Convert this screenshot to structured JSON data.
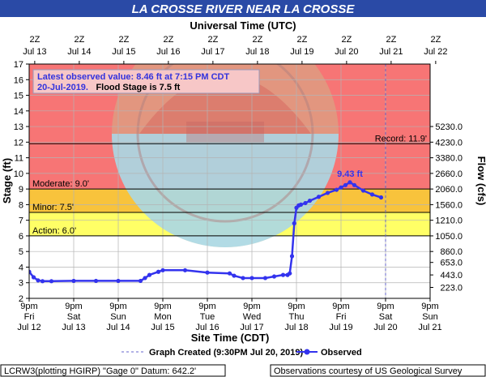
{
  "chart_data": {
    "type": "line",
    "title": "LA CROSSE RIVER NEAR LA CROSSE",
    "utc_axis_title": "Universal Time (UTC)",
    "utc_ticks": [
      {
        "hour": "2Z",
        "date": "Jul 13",
        "x": 0.125
      },
      {
        "hour": "2Z",
        "date": "Jul 14",
        "x": 1.125
      },
      {
        "hour": "2Z",
        "date": "Jul 15",
        "x": 2.125
      },
      {
        "hour": "2Z",
        "date": "Jul 16",
        "x": 3.125
      },
      {
        "hour": "2Z",
        "date": "Jul 17",
        "x": 4.125
      },
      {
        "hour": "2Z",
        "date": "Jul 18",
        "x": 5.125
      },
      {
        "hour": "2Z",
        "date": "Jul 19",
        "x": 6.125
      },
      {
        "hour": "2Z",
        "date": "Jul 20",
        "x": 7.125
      },
      {
        "hour": "2Z",
        "date": "Jul 21",
        "x": 8.125
      },
      {
        "hour": "2Z",
        "date": "Jul 22",
        "x": 9.125
      }
    ],
    "xlabel": "Site Time (CDT)",
    "local_ticks": [
      {
        "time": "9pm",
        "day": "Fri",
        "date": "Jul 12"
      },
      {
        "time": "9pm",
        "day": "Sat",
        "date": "Jul 13"
      },
      {
        "time": "9pm",
        "day": "Sun",
        "date": "Jul 14"
      },
      {
        "time": "9pm",
        "day": "Mon",
        "date": "Jul 15"
      },
      {
        "time": "9pm",
        "day": "Tue",
        "date": "Jul 16"
      },
      {
        "time": "9pm",
        "day": "Wed",
        "date": "Jul 17"
      },
      {
        "time": "9pm",
        "day": "Thu",
        "date": "Jul 18"
      },
      {
        "time": "9pm",
        "day": "Fri",
        "date": "Jul 19"
      },
      {
        "time": "9pm",
        "day": "Sat",
        "date": "Jul 20"
      },
      {
        "time": "9pm",
        "day": "Sun",
        "date": "Jul 21"
      }
    ],
    "xlim": [
      0,
      9
    ],
    "ylabel": "Stage (ft)",
    "ylim": [
      2,
      17
    ],
    "yticks": [
      2,
      3,
      4,
      5,
      6,
      7,
      8,
      9,
      10,
      11,
      12,
      13,
      14,
      15,
      16,
      17
    ],
    "y2label": "Flow (cfs)",
    "flow_ticks": [
      {
        "stage": 2.7,
        "label": "223.0"
      },
      {
        "stage": 3.5,
        "label": "443.0"
      },
      {
        "stage": 4.3,
        "label": "653.0"
      },
      {
        "stage": 5.0,
        "label": "860.0"
      },
      {
        "stage": 6.0,
        "label": "1050.0"
      },
      {
        "stage": 7.0,
        "label": "1210.0"
      },
      {
        "stage": 8.0,
        "label": "1560.0"
      },
      {
        "stage": 9.0,
        "label": "2060.0"
      },
      {
        "stage": 10.0,
        "label": "2660.0"
      },
      {
        "stage": 11.0,
        "label": "3380.0"
      },
      {
        "stage": 12.0,
        "label": "4230.0"
      },
      {
        "stage": 13.0,
        "label": "5230.0"
      }
    ],
    "flood_bands": [
      {
        "from": 9.0,
        "to": 17.0,
        "color": "#f77575"
      },
      {
        "from": 7.5,
        "to": 9.0,
        "color": "#f8c33c"
      },
      {
        "from": 6.0,
        "to": 7.5,
        "color": "#ffff66"
      }
    ],
    "thresholds": [
      {
        "name": "Moderate",
        "label": "Moderate: 9.0'",
        "stage": 9.0
      },
      {
        "name": "Minor",
        "label": "Minor: 7.5'",
        "stage": 7.5
      },
      {
        "name": "Action",
        "label": "Action: 6.0'",
        "stage": 6.0
      },
      {
        "name": "Record",
        "label": "Record: 11.9'",
        "stage": 11.9
      }
    ],
    "latest_note_line1": "Latest observed value: 8.46 ft at 7:15 PM CDT",
    "latest_note_line2a": "20-Jul-2019.",
    "latest_note_line2b": "Flood Stage is 7.5 ft",
    "peak_label": "9.43 ft",
    "peak": {
      "x": 7.2,
      "y": 9.43
    },
    "graph_created_x": 8.0,
    "series": [
      {
        "name": "Observed",
        "color": "#3333ee",
        "x": [
          0.0,
          0.1,
          0.2,
          0.3,
          0.5,
          1.0,
          1.5,
          2.0,
          2.5,
          2.6,
          2.7,
          2.9,
          3.0,
          3.5,
          4.0,
          4.5,
          4.6,
          4.8,
          5.0,
          5.3,
          5.5,
          5.7,
          5.8,
          5.85,
          5.9,
          5.95,
          6.0,
          6.05,
          6.1,
          6.2,
          6.3,
          6.5,
          6.7,
          6.9,
          7.0,
          7.1,
          7.2,
          7.3,
          7.5,
          7.7,
          7.9
        ],
        "y": [
          3.7,
          3.35,
          3.15,
          3.1,
          3.1,
          3.12,
          3.12,
          3.12,
          3.12,
          3.3,
          3.5,
          3.7,
          3.8,
          3.8,
          3.65,
          3.6,
          3.45,
          3.3,
          3.3,
          3.3,
          3.4,
          3.5,
          3.5,
          3.6,
          4.7,
          6.8,
          7.8,
          7.95,
          8.0,
          8.1,
          8.25,
          8.5,
          8.75,
          8.95,
          9.1,
          9.25,
          9.43,
          9.25,
          8.9,
          8.65,
          8.46
        ]
      }
    ]
  },
  "legend": {
    "graph_created": "Graph Created (9:30PM Jul 20, 2019)",
    "observed": "Observed"
  },
  "footer": {
    "datum": "LCRW3(plotting HGIRP) \"Gage 0\" Datum: 642.2'",
    "courtesy": "Observations courtesy of US Geological Survey"
  }
}
